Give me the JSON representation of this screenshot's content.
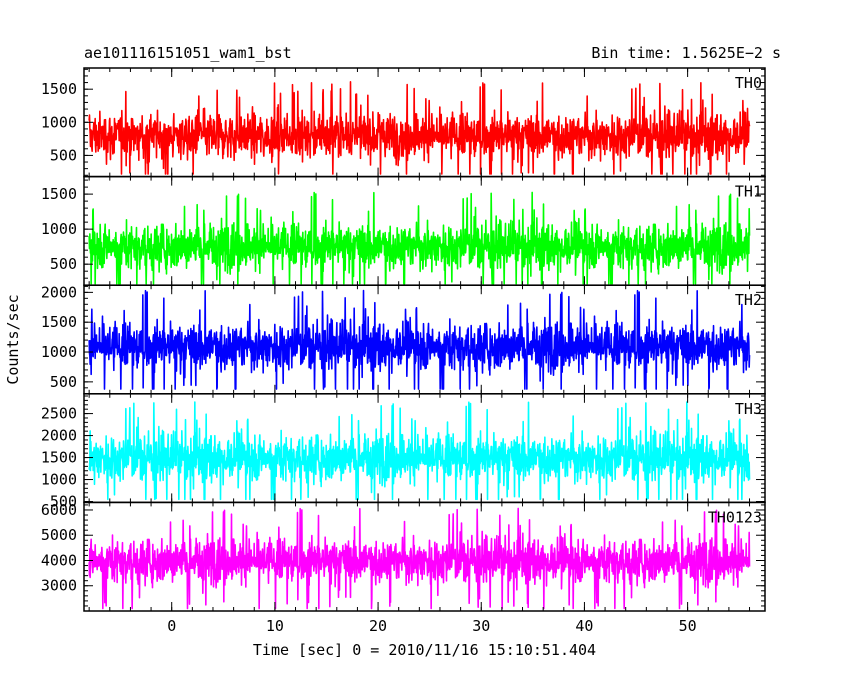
{
  "header": {
    "title": "ae101116151051_wam1_bst",
    "bin_time": "Bin time: 1.5625E−2 s"
  },
  "chart_data": {
    "type": "line",
    "title": "ae101116151051_wam1_bst",
    "subtitle": "Bin time: 1.5625E−2 s",
    "xlabel": "Time [sec] 0 = 2010/11/16 15:10:51.404",
    "ylabel": "Counts/sec",
    "xlim": [
      -8.5,
      57.5
    ],
    "x_ticks": [
      0,
      10,
      20,
      30,
      40,
      50
    ],
    "x_range_data": [
      -8.0,
      56.0
    ],
    "grid": false,
    "legend": "none",
    "panels": [
      {
        "name": "TH0",
        "color": "#ff0000",
        "ylim": [
          180,
          1820
        ],
        "y_ticks": [
          500,
          1000,
          1500
        ],
        "mean": 800,
        "spread": 240,
        "min": 220,
        "max": 1720
      },
      {
        "name": "TH1",
        "color": "#00ff00",
        "ylim": [
          200,
          1750
        ],
        "y_ticks": [
          500,
          1000,
          1500
        ],
        "mean": 760,
        "spread": 230,
        "min": 220,
        "max": 1680
      },
      {
        "name": "TH2",
        "color": "#0000ff",
        "ylim": [
          300,
          2120
        ],
        "y_ticks": [
          500,
          1000,
          1500,
          2000
        ],
        "mean": 1100,
        "spread": 280,
        "min": 380,
        "max": 2050
      },
      {
        "name": "TH3",
        "color": "#00ffff",
        "ylim": [
          480,
          2950
        ],
        "y_ticks": [
          500,
          1000,
          1500,
          2000,
          2500
        ],
        "mean": 1500,
        "spread": 380,
        "min": 550,
        "max": 2900
      },
      {
        "name": "TH0123",
        "color": "#ff00ff",
        "ylim": [
          2000,
          6300
        ],
        "y_ticks": [
          3000,
          4000,
          5000,
          6000
        ],
        "mean": 4000,
        "spread": 620,
        "min": 2100,
        "max": 6250
      }
    ]
  }
}
